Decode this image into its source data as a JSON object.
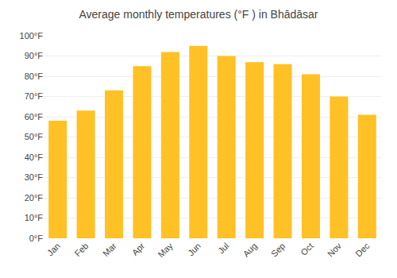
{
  "chart_data": {
    "type": "bar",
    "title": "Average monthly temperatures (°F ) in Bhādāsar",
    "categories": [
      "Jan",
      "Feb",
      "Mar",
      "Apr",
      "May",
      "Jun",
      "Jul",
      "Aug",
      "Sep",
      "Oct",
      "Nov",
      "Dec"
    ],
    "values": [
      58,
      63,
      73,
      85,
      92,
      95,
      90,
      87,
      86,
      81,
      70,
      61
    ],
    "color": "#FFC125",
    "ylim": [
      0,
      100
    ],
    "yticks": [
      {
        "value": 0,
        "label": "0°F"
      },
      {
        "value": 10,
        "label": "10°F"
      },
      {
        "value": 20,
        "label": "20°F"
      },
      {
        "value": 30,
        "label": "30°F"
      },
      {
        "value": 40,
        "label": "40°F"
      },
      {
        "value": 50,
        "label": "50°F"
      },
      {
        "value": 60,
        "label": "60°F"
      },
      {
        "value": 70,
        "label": "70°F"
      },
      {
        "value": 80,
        "label": "80°F"
      },
      {
        "value": 90,
        "label": "90°F"
      },
      {
        "value": 100,
        "label": "100°F"
      }
    ],
    "grid": true
  }
}
